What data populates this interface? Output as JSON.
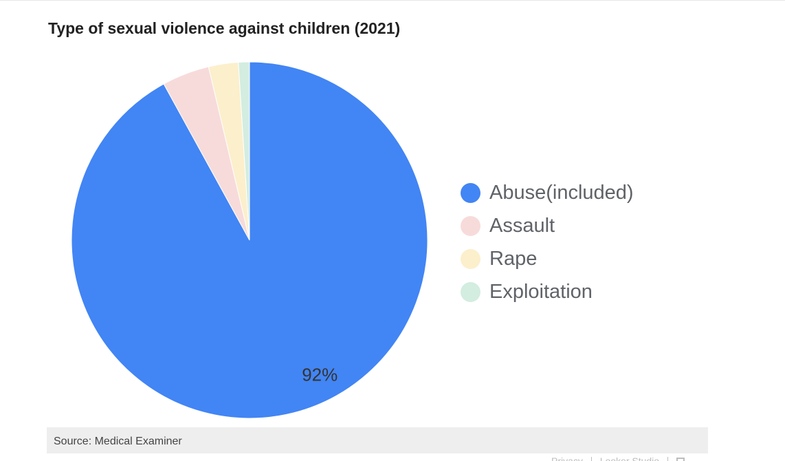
{
  "chart_data": {
    "type": "pie",
    "title": "Type of sexual violence against children (2021)",
    "categories": [
      "Abuse(included)",
      "Assault",
      "Rape",
      "Exploitation"
    ],
    "values": [
      92,
      4.3,
      2.7,
      1
    ],
    "colors": [
      "#4285f4",
      "#f7dbda",
      "#fcefcc",
      "#d3ede0"
    ],
    "data_labels": [
      "92%",
      "",
      "",
      ""
    ],
    "legend_position": "right",
    "source": "Source: Medical Examiner"
  },
  "footer": {
    "privacy_label": "Privacy",
    "looker_label": "Looker Studio"
  }
}
